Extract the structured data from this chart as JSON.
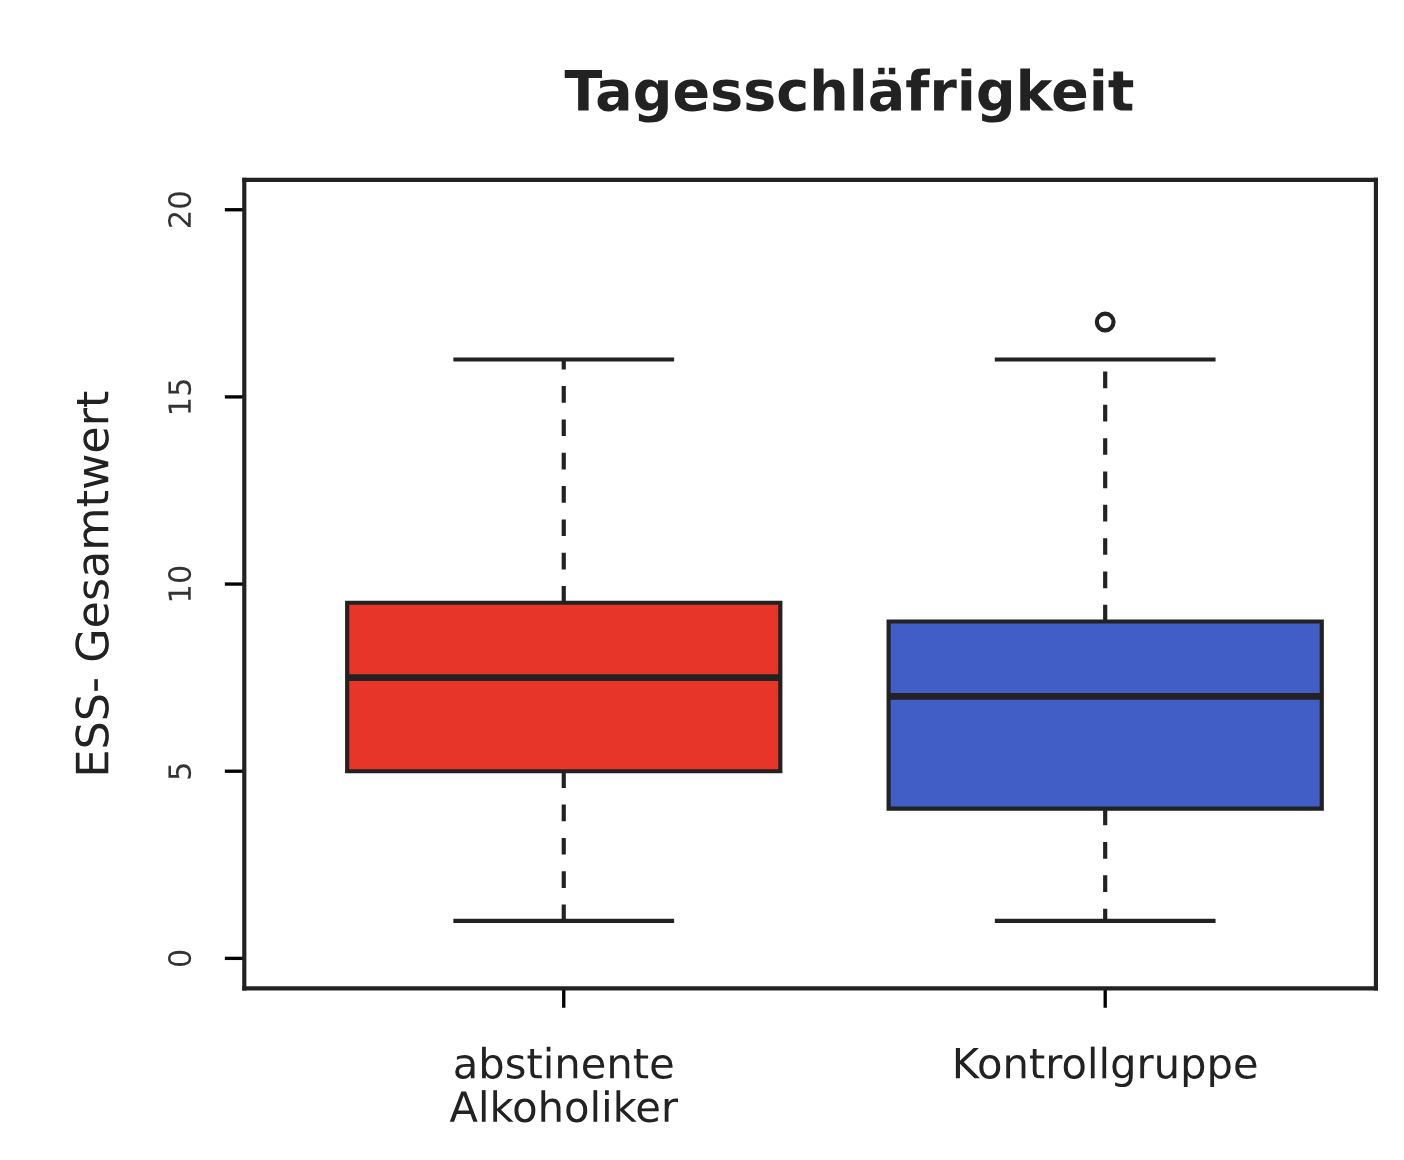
{
  "chart_data": {
    "type": "box",
    "title": "Tagesschläfrigkeit",
    "ylabel": "ESS- Gesamtwert",
    "categories": [
      "abstinente\nAlkoholiker",
      "Kontrollgruppe"
    ],
    "boxes": [
      {
        "low": 1,
        "q1": 5,
        "median": 7.5,
        "q3": 9.5,
        "high": 16
      },
      {
        "low": 1,
        "q1": 4,
        "median": 7,
        "q3": 9,
        "high": 16,
        "outliers": [
          17
        ]
      }
    ],
    "colors": [
      "#e8352a",
      "#405ec6"
    ],
    "ylim": [
      -0.8,
      20.8
    ],
    "yticks": [
      0,
      5,
      10,
      15,
      20
    ],
    "marker": "circle",
    "line_style": "dashed"
  }
}
